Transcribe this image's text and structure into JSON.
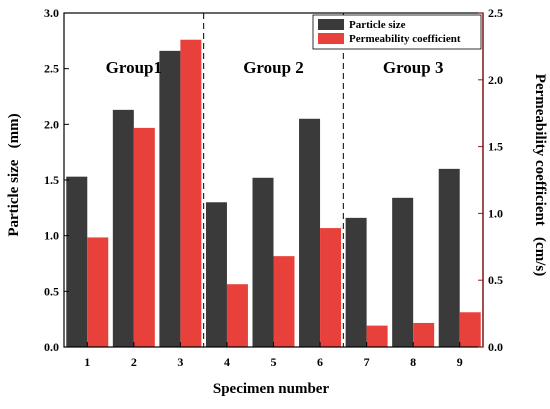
{
  "chart_data": {
    "type": "bar",
    "categories": [
      "1",
      "2",
      "3",
      "4",
      "5",
      "6",
      "7",
      "8",
      "9"
    ],
    "series": [
      {
        "name": "Particle size",
        "axis": "left",
        "color": "#3a3a3a",
        "values": [
          1.53,
          2.13,
          2.66,
          1.3,
          1.52,
          2.05,
          1.16,
          1.34,
          1.6
        ]
      },
      {
        "name": "Permeability coefficient",
        "axis": "right",
        "color": "#e8403a",
        "values": [
          0.82,
          1.64,
          2.3,
          0.47,
          0.68,
          0.89,
          0.16,
          0.18,
          0.26
        ]
      }
    ],
    "xlabel": "Specimen number",
    "ylabel_left": "Particle size   (mm)",
    "ylabel_right": "Permeability coefficient   (cm/s)",
    "ylim_left": [
      0,
      3.0
    ],
    "ylim_right": [
      0,
      2.5
    ],
    "yticks_left": [
      "0.0",
      "0.5",
      "1.0",
      "1.5",
      "2.0",
      "2.5",
      "3.0"
    ],
    "yticks_right": [
      "0.0",
      "0.5",
      "1.0",
      "1.5",
      "2.0",
      "2.5"
    ],
    "groups": [
      {
        "label": "Group1",
        "specimens": [
          "1",
          "2",
          "3"
        ]
      },
      {
        "label": "Group 2",
        "specimens": [
          "4",
          "5",
          "6"
        ]
      },
      {
        "label": "Group 3",
        "specimens": [
          "7",
          "8",
          "9"
        ]
      }
    ],
    "legend_position": "top-right",
    "grid": false,
    "colors": {
      "left_axis": "#000000",
      "right_axis": "#8b1a1a"
    }
  }
}
